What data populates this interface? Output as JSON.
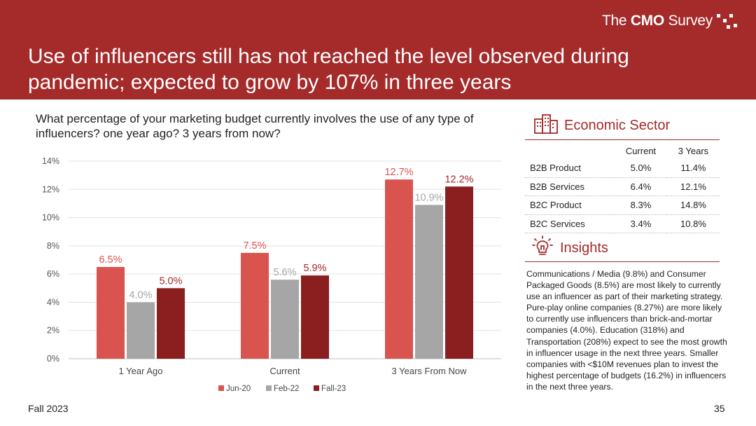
{
  "brand": {
    "prefix": "The ",
    "bold": "CMO",
    "suffix": " Survey"
  },
  "title": "Use of influencers still has not reached the level observed during pandemic; expected to grow by 107% in three years",
  "question": "What percentage of your marketing budget currently involves the use of any type of influencers? one year ago? 3 years from now?",
  "chart_data": {
    "type": "bar",
    "categories": [
      "1 Year Ago",
      "Current",
      "3 Years From Now"
    ],
    "series": [
      {
        "name": "Jun-20",
        "values": [
          6.5,
          7.5,
          12.7
        ],
        "labels": [
          "6.5%",
          "7.5%",
          "12.7%"
        ],
        "color": "#d9534f",
        "label_color": "#d9534f"
      },
      {
        "name": "Feb-22",
        "values": [
          4.0,
          5.6,
          10.9
        ],
        "labels": [
          "4.0%",
          "5.6%",
          "10.9%"
        ],
        "color": "#a6a6a6",
        "label_color": "#a6a6a6"
      },
      {
        "name": "Fall-23",
        "values": [
          5.0,
          5.9,
          12.2
        ],
        "labels": [
          "5.0%",
          "5.9%",
          "12.2%"
        ],
        "color": "#8b1e1e",
        "label_color": "#a52a2a"
      }
    ],
    "y_ticks": [
      "0%",
      "2%",
      "4%",
      "6%",
      "8%",
      "10%",
      "12%",
      "14%"
    ],
    "ylim": [
      0,
      14
    ],
    "grid": true,
    "legend_position": "bottom-center"
  },
  "economic_sector": {
    "title": "Economic Sector",
    "columns": [
      "Current",
      "3 Years"
    ],
    "rows": [
      {
        "label": "B2B Product",
        "current": "5.0%",
        "three_years": "11.4%"
      },
      {
        "label": "B2B Services",
        "current": "6.4%",
        "three_years": "12.1%"
      },
      {
        "label": "B2C Product",
        "current": "8.3%",
        "three_years": "14.8%"
      },
      {
        "label": "B2C Services",
        "current": "3.4%",
        "three_years": "10.8%"
      }
    ]
  },
  "insights": {
    "title": "Insights",
    "text": "Communications / Media (9.8%) and Consumer Packaged Goods (8.5%) are most likely to currently use an influencer as part of their marketing strategy. Pure-play online companies (8.27%) are more likely to currently use influencers than brick-and-mortar companies (4.0%). Education (318%) and Transportation (208%) expect to see the most growth in influencer usage in the next three years. Smaller companies with <$10M revenues plan to invest the highest percentage of budgets (16.2%) in influencers in the next three years."
  },
  "footer": {
    "left": "Fall 2023",
    "page": "35"
  },
  "colors": {
    "accent": "#a52a2a"
  },
  "icons": {
    "sector": "buildings-icon",
    "insights": "lightbulb-icon"
  }
}
